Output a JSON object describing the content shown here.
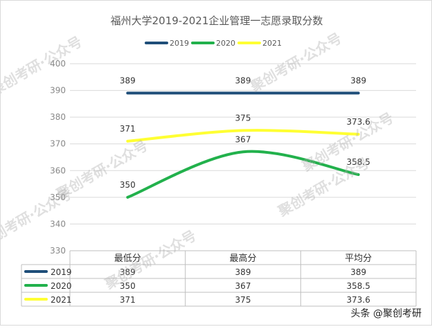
{
  "chart_data": {
    "type": "line",
    "title": "福州大学2019-2021企业管理一志愿录取分数",
    "categories": [
      "最低分",
      "最高分",
      "平均分"
    ],
    "ylim": [
      330,
      400
    ],
    "yticks": [
      "400",
      "390",
      "380",
      "370",
      "360",
      "350",
      "340",
      "330"
    ],
    "grid": true,
    "legend": "top",
    "series": [
      {
        "name": "2019",
        "values": [
          389,
          389,
          389
        ],
        "labels": [
          "389",
          "389",
          "389"
        ],
        "color": "#1f4e79",
        "smooth": false
      },
      {
        "name": "2020",
        "values": [
          350,
          367,
          358.5
        ],
        "labels": [
          "350",
          "367",
          "358.5"
        ],
        "color": "#22b14c",
        "smooth": true
      },
      {
        "name": "2021",
        "values": [
          371,
          375,
          373.6
        ],
        "labels": [
          "371",
          "375",
          "373.6"
        ],
        "color": "#ffff33",
        "smooth": true
      }
    ],
    "data_table": true
  },
  "watermarks": [
    "聚创考研·公众号",
    "聚创考研·公众号",
    "聚创考研·公众号",
    "聚创考研·公众号",
    "聚创考研·公众号",
    "聚创考研·公众号",
    "聚创考研·公众号"
  ],
  "footer": {
    "credit": "头条 @聚创考研"
  }
}
